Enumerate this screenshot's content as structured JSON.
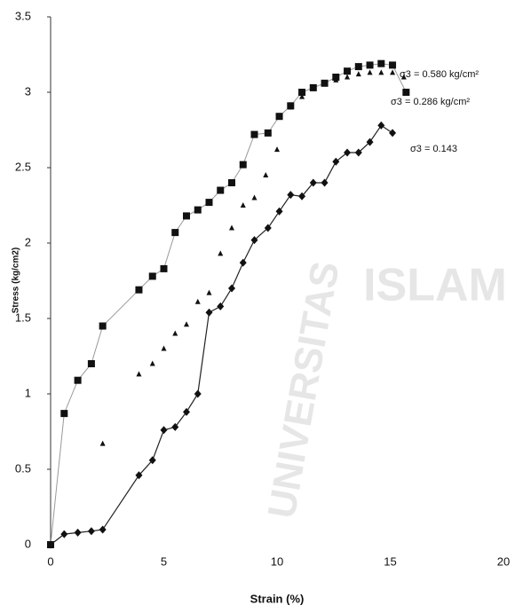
{
  "chart_data": {
    "type": "scatter",
    "x_label": "Strain (%)",
    "y_label": "Stress (kg/cm2)",
    "xlim": [
      0,
      20
    ],
    "xticks": [
      0,
      5,
      10,
      15,
      20
    ],
    "ylim": [
      0,
      3.5
    ],
    "yticks": [
      0,
      0.5,
      1,
      1.5,
      2,
      2.5,
      3,
      3.5
    ],
    "grid": false,
    "watermark": [
      "ISLAM",
      "UNIVERSITAS"
    ],
    "series": [
      {
        "name": "σ3 = 0.580 kg/cm²",
        "marker": "square",
        "line": true,
        "color": "#111",
        "x": [
          0,
          0.6,
          1.2,
          1.8,
          2.3,
          3.9,
          4.5,
          5.0,
          5.5,
          6.0,
          6.5,
          7.0,
          7.5,
          8.0,
          8.5,
          9.0,
          9.6,
          10.1,
          10.6,
          11.1,
          11.6,
          12.1,
          12.6,
          13.1,
          13.6,
          14.1,
          14.6,
          15.1,
          15.7
        ],
        "values": [
          0,
          0.87,
          1.09,
          1.2,
          1.45,
          1.69,
          1.78,
          1.83,
          2.07,
          2.18,
          2.22,
          2.27,
          2.35,
          2.4,
          2.52,
          2.72,
          2.73,
          2.84,
          2.91,
          3.0,
          3.03,
          3.06,
          3.1,
          3.14,
          3.17,
          3.18,
          3.19,
          3.18,
          3.0
        ]
      },
      {
        "name": "σ3 = 0.286 kg/cm²",
        "marker": "triangle",
        "line": false,
        "color": "#111",
        "x": [
          2.3,
          3.9,
          4.5,
          5.0,
          5.5,
          6.0,
          6.5,
          7.0,
          7.5,
          8.0,
          8.5,
          9.0,
          9.5,
          10.0,
          10.6,
          11.1,
          11.6,
          12.1,
          12.6,
          13.1,
          13.6,
          14.1,
          14.6,
          15.1,
          15.6
        ],
        "values": [
          0.67,
          1.13,
          1.2,
          1.3,
          1.4,
          1.46,
          1.61,
          1.67,
          1.93,
          2.1,
          2.25,
          2.3,
          2.45,
          2.62,
          2.9,
          2.97,
          3.03,
          3.06,
          3.08,
          3.1,
          3.12,
          3.13,
          3.13,
          3.13,
          3.1
        ]
      },
      {
        "name": "σ3 = 0.143",
        "marker": "diamond",
        "line": true,
        "color": "#111",
        "x": [
          0,
          0.6,
          1.2,
          1.8,
          2.3,
          3.9,
          4.5,
          5.0,
          5.5,
          6.0,
          6.5,
          7.0,
          7.5,
          8.0,
          8.5,
          9.0,
          9.6,
          10.1,
          10.6,
          11.1,
          11.6,
          12.1,
          12.6,
          13.1,
          13.6,
          14.1,
          14.6,
          15.1
        ],
        "values": [
          0,
          0.07,
          0.08,
          0.09,
          0.1,
          0.46,
          0.56,
          0.76,
          0.78,
          0.88,
          1.0,
          1.54,
          1.58,
          1.7,
          1.87,
          2.02,
          2.1,
          2.21,
          2.32,
          2.31,
          2.4,
          2.4,
          2.54,
          2.6,
          2.6,
          2.67,
          2.78,
          2.73
        ]
      }
    ]
  }
}
